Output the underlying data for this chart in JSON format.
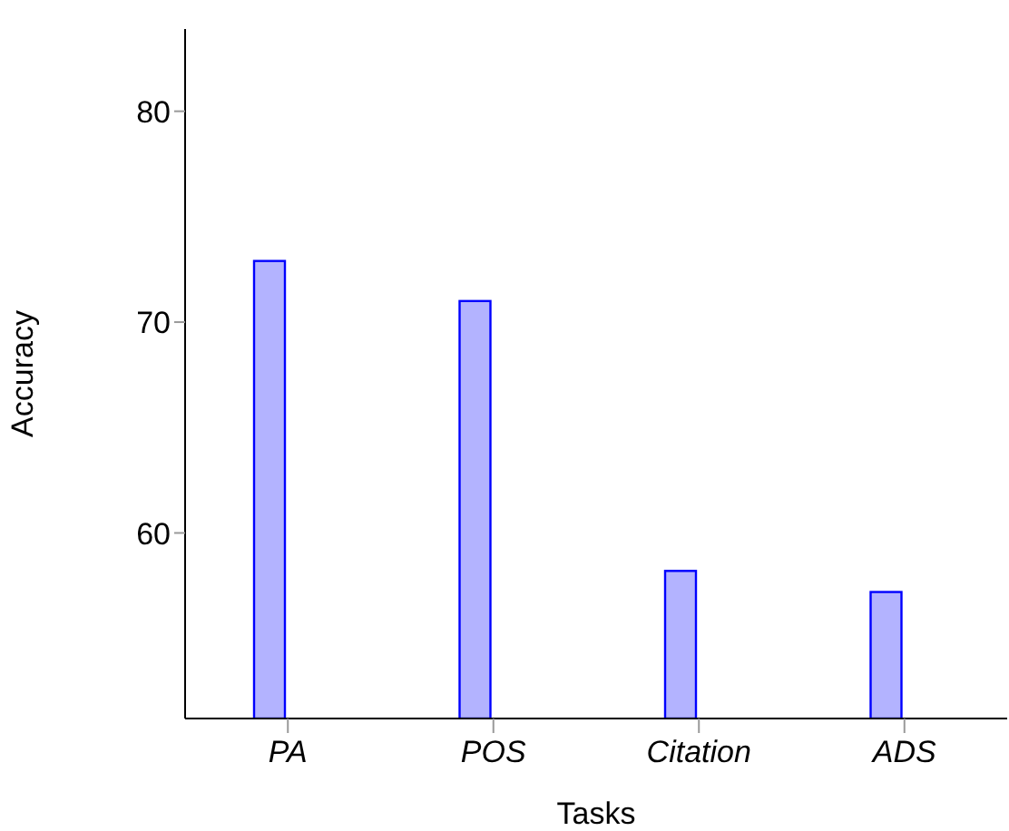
{
  "chart_data": {
    "type": "bar",
    "xlabel": "Tasks",
    "ylabel": "Accuracy",
    "categories": [
      "PA",
      "POS",
      "Citation",
      "ADS"
    ],
    "series": [
      {
        "color": "#0000ff",
        "values": [
          72.9,
          71.0,
          58.2,
          57.2
        ]
      },
      {
        "color": "#ff0000",
        "values": [
          null,
          null,
          null,
          null
        ]
      }
    ],
    "ylim": [
      51.2,
      83.9
    ],
    "yticks": [
      60,
      70,
      80
    ],
    "grid": false,
    "legend": false
  }
}
